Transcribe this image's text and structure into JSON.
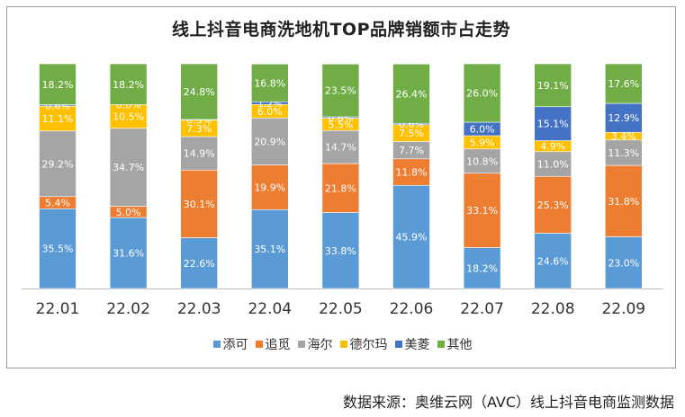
{
  "chart_data": {
    "type": "bar",
    "stacked": true,
    "percent": true,
    "title": "线上抖音电商洗地机TOP品牌销额市占走势",
    "categories": [
      "22.01",
      "22.02",
      "22.03",
      "22.04",
      "22.05",
      "22.06",
      "22.07",
      "22.08",
      "22.09"
    ],
    "ylim": [
      0,
      100
    ],
    "legend_position": "bottom",
    "series": [
      {
        "name": "添可",
        "color": "#5b9bd5",
        "values": [
          35.5,
          31.6,
          22.6,
          35.1,
          33.8,
          45.9,
          18.2,
          24.6,
          23.0
        ]
      },
      {
        "name": "追觅",
        "color": "#ed7d31",
        "values": [
          5.4,
          5.0,
          30.1,
          19.9,
          21.8,
          11.8,
          33.1,
          25.3,
          31.8
        ]
      },
      {
        "name": "海尔",
        "color": "#a5a5a5",
        "values": [
          29.2,
          34.7,
          14.9,
          20.9,
          14.7,
          7.7,
          10.8,
          11.0,
          11.3
        ]
      },
      {
        "name": "德尔玛",
        "color": "#ffc000",
        "values": [
          11.1,
          10.5,
          7.3,
          6.0,
          5.5,
          7.5,
          5.9,
          4.9,
          3.4
        ]
      },
      {
        "name": "美菱",
        "color": "#4472c4",
        "values": [
          0.6,
          0.0,
          0.3,
          1.2,
          0.6,
          0.6,
          6.0,
          15.1,
          12.9
        ]
      },
      {
        "name": "其他",
        "color": "#70ad47",
        "values": [
          18.2,
          18.2,
          24.8,
          16.8,
          23.5,
          26.4,
          26.0,
          19.1,
          17.6
        ]
      }
    ]
  },
  "source": "数据来源：奥维云网（AVC）线上抖音电商监测数据"
}
